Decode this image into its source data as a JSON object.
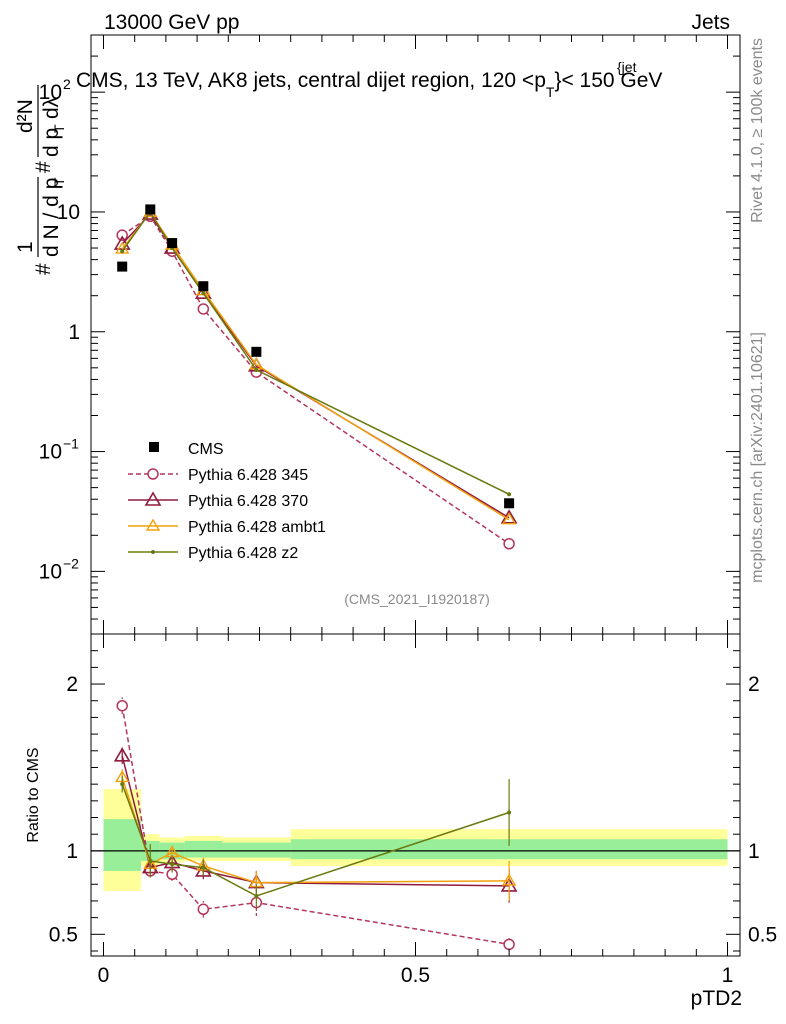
{
  "header": {
    "left": "13000 GeV pp",
    "right": "Jets"
  },
  "side_labels": {
    "rivet": "Rivet 4.1.0, ≥ 100k events",
    "mcplots": "mcplots.cern.ch [arXiv:2401.10621]"
  },
  "chart_data": {
    "type": "line",
    "title_parts": {
      "main": "CMS, 13 TeV, AK8 jets, central dijet region, 120 <p",
      "sup": "{jet",
      "sub": "T",
      "tail": "}< 150 GeV"
    },
    "analysis_id": "(CMS_2021_I1920187)",
    "xlabel": "pTD2",
    "ylabel_parts": {
      "hash": "#",
      "num": "1",
      "den": "d N / d p",
      "den_sub": "T",
      "hash2": "#",
      "num2": "d²N",
      "den2": "d p",
      "den2_sub": "T",
      "den2_tail": "dλ"
    },
    "ratio_ylabel": "Ratio to CMS",
    "xlim": [
      -0.02,
      1.02
    ],
    "ylim_log": [
      0.003,
      300
    ],
    "ratio_ylim": [
      0.37,
      2.3
    ],
    "x_ticks": [
      {
        "v": 0,
        "label": "0"
      },
      {
        "v": 0.5,
        "label": "0.5"
      },
      {
        "v": 1,
        "label": "1"
      }
    ],
    "y_ticks_main": [
      {
        "v": 0.01,
        "base": "10",
        "exp": "−2"
      },
      {
        "v": 0.1,
        "base": "10",
        "exp": "−1"
      },
      {
        "v": 1,
        "base": "1",
        "exp": ""
      },
      {
        "v": 10,
        "base": "10",
        "exp": ""
      },
      {
        "v": 100,
        "base": "10",
        "exp": "2"
      }
    ],
    "y_ticks_ratio": [
      {
        "v": 0.5,
        "label": "0.5"
      },
      {
        "v": 1,
        "label": "1"
      },
      {
        "v": 2,
        "label": "2"
      }
    ],
    "data": {
      "name": "CMS",
      "x": [
        0.03,
        0.075,
        0.11,
        0.16,
        0.245,
        0.65
      ],
      "xerr": [
        [
          0,
          0.06
        ],
        [
          0.06,
          0.09
        ],
        [
          0.09,
          0.13
        ],
        [
          0.13,
          0.19
        ],
        [
          0.19,
          0.3
        ],
        [
          0.3,
          1.0
        ]
      ],
      "y": [
        3.5,
        10.5,
        5.5,
        2.4,
        0.68,
        0.037
      ],
      "band_stat": [
        [
          0.88,
          1.19
        ],
        [
          0.94,
          1.06
        ],
        [
          0.95,
          1.05
        ],
        [
          0.96,
          1.06
        ],
        [
          0.96,
          1.05
        ],
        [
          0.95,
          1.07
        ]
      ],
      "band_syst": [
        [
          0.76,
          1.37
        ],
        [
          0.91,
          1.1
        ],
        [
          0.93,
          1.08
        ],
        [
          0.94,
          1.09
        ],
        [
          0.94,
          1.08
        ],
        [
          0.91,
          1.13
        ]
      ]
    },
    "series": [
      {
        "name": "Pythia 6.428 345",
        "color": "#b3365b",
        "marker": "circle",
        "dashed": true,
        "values": [
          6.4,
          9.2,
          4.7,
          1.55,
          0.46,
          0.017
        ],
        "ratio": [
          1.87,
          0.88,
          0.86,
          0.65,
          0.69,
          0.44
        ],
        "ratio_err": [
          0.05,
          0.03,
          0.04,
          0.05,
          0.08,
          0.04
        ]
      },
      {
        "name": "Pythia 6.428 370",
        "color": "#8f1b3f",
        "marker": "triangle",
        "dashed": false,
        "values": [
          5.4,
          9.6,
          5.0,
          2.1,
          0.52,
          0.028
        ],
        "ratio": [
          1.57,
          0.9,
          0.93,
          0.88,
          0.81,
          0.79
        ],
        "ratio_err": [
          0.05,
          0.03,
          0.04,
          0.05,
          0.07,
          0.1
        ]
      },
      {
        "name": "Pythia 6.428 ambt1",
        "color": "#f2a10d",
        "marker": "triangle-open",
        "dashed": false,
        "values": [
          4.9,
          9.9,
          5.3,
          2.2,
          0.53,
          0.027
        ],
        "ratio": [
          1.44,
          0.92,
          0.99,
          0.91,
          0.81,
          0.82
        ],
        "ratio_err": [
          0.05,
          0.03,
          0.04,
          0.05,
          0.07,
          0.12
        ]
      },
      {
        "name": "Pythia 6.428 z2",
        "color": "#6b7a10",
        "marker": "dot",
        "dashed": false,
        "values": [
          4.7,
          10.0,
          5.0,
          2.1,
          0.48,
          0.044
        ],
        "ratio": [
          1.4,
          0.94,
          0.92,
          0.9,
          0.73,
          1.23
        ],
        "ratio_err": [
          0.05,
          0.1,
          0.05,
          0.05,
          0.07,
          0.2
        ]
      }
    ]
  }
}
